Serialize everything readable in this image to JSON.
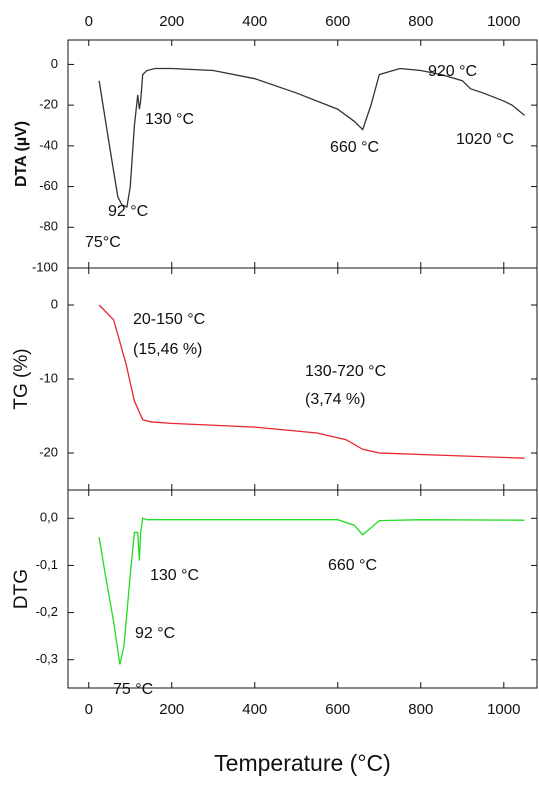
{
  "chart_data": [
    {
      "type": "line",
      "ylabel": "DTA (µV)",
      "xlim": [
        -50,
        1080
      ],
      "xticks": [
        0,
        200,
        400,
        600,
        800,
        1000
      ],
      "ylim": [
        -100,
        12
      ],
      "yticks": [
        0,
        -20,
        -40,
        -60,
        -80,
        -100
      ],
      "x": [
        25,
        50,
        70,
        80,
        92,
        100,
        110,
        118,
        122,
        125,
        130,
        140,
        160,
        200,
        300,
        400,
        500,
        600,
        640,
        660,
        680,
        700,
        750,
        800,
        850,
        900,
        920,
        950,
        1000,
        1020,
        1050
      ],
      "series": [
        {
          "color": "#333333",
          "values": [
            -8,
            -40,
            -65,
            -69,
            -70,
            -60,
            -30,
            -15,
            -22,
            -18,
            -5,
            -3,
            -2,
            -2,
            -3,
            -7,
            -14,
            -22,
            -28,
            -32,
            -20,
            -5,
            -2,
            -3,
            -5,
            -8,
            -12,
            -14,
            -18,
            -20,
            -25
          ]
        }
      ],
      "annotations": [
        "130 °C",
        "660 °C",
        "920 °C",
        "1020 °C",
        "92 °C",
        "75°C"
      ]
    },
    {
      "type": "line",
      "ylabel": "TG (%)",
      "xlim": [
        -50,
        1080
      ],
      "ylim": [
        -25,
        5
      ],
      "yticks": [
        0,
        -10,
        -20
      ],
      "x": [
        25,
        60,
        90,
        110,
        130,
        150,
        200,
        400,
        550,
        620,
        660,
        700,
        800,
        1050
      ],
      "series": [
        {
          "color": "#e8262b",
          "values": [
            0,
            -2,
            -8,
            -13,
            -15.5,
            -15.8,
            -16,
            -16.5,
            -17.3,
            -18.2,
            -19.5,
            -20,
            -20.2,
            -20.7
          ]
        }
      ],
      "annotations": [
        "20-150 °C",
        "(15,46 %)",
        "130-720 °C",
        "(3,74 %)"
      ]
    },
    {
      "type": "line",
      "ylabel": "DTG",
      "xlabel": "Temperature (°C)",
      "xlim": [
        -50,
        1080
      ],
      "xticks": [
        0,
        200,
        400,
        600,
        800,
        1000
      ],
      "ylim": [
        -0.36,
        0.06
      ],
      "yticks": [
        {
          "value": 0,
          "label": "0,0"
        },
        {
          "value": -0.1,
          "label": "-0,1"
        },
        {
          "value": -0.2,
          "label": "-0,2"
        },
        {
          "value": -0.3,
          "label": "-0,3"
        }
      ],
      "x": [
        25,
        40,
        60,
        75,
        85,
        92,
        100,
        110,
        118,
        122,
        125,
        130,
        140,
        200,
        400,
        600,
        640,
        660,
        680,
        700,
        800,
        1050
      ],
      "series": [
        {
          "color": "#22dd22",
          "values": [
            -0.04,
            -0.12,
            -0.22,
            -0.31,
            -0.27,
            -0.2,
            -0.12,
            -0.03,
            -0.03,
            -0.09,
            -0.03,
            0,
            -0.003,
            -0.003,
            -0.003,
            -0.003,
            -0.015,
            -0.035,
            -0.02,
            -0.005,
            -0.003,
            -0.004
          ]
        }
      ],
      "annotations": [
        "130 °C",
        "660 °C",
        "92 °C",
        "75 °C"
      ]
    }
  ]
}
